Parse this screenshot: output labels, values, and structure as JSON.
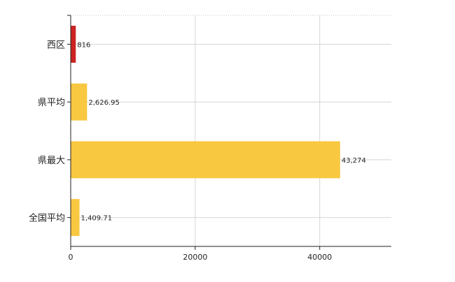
{
  "chart_data": {
    "type": "bar",
    "orientation": "horizontal",
    "categories": [
      "西区",
      "県平均",
      "県最大",
      "全国平均"
    ],
    "values": [
      816,
      2626.95,
      43274,
      1409.71
    ],
    "value_labels": [
      "816",
      "2,626.95",
      "43,274",
      "1,409.71"
    ],
    "bar_colors": [
      "#cc2222",
      "#f8c840",
      "#f8c840",
      "#f8c840"
    ],
    "xticks": [
      "0",
      "20000",
      "40000"
    ],
    "xlim": [
      0,
      51500
    ],
    "grid": true,
    "title": "",
    "xlabel": "",
    "ylabel": ""
  }
}
